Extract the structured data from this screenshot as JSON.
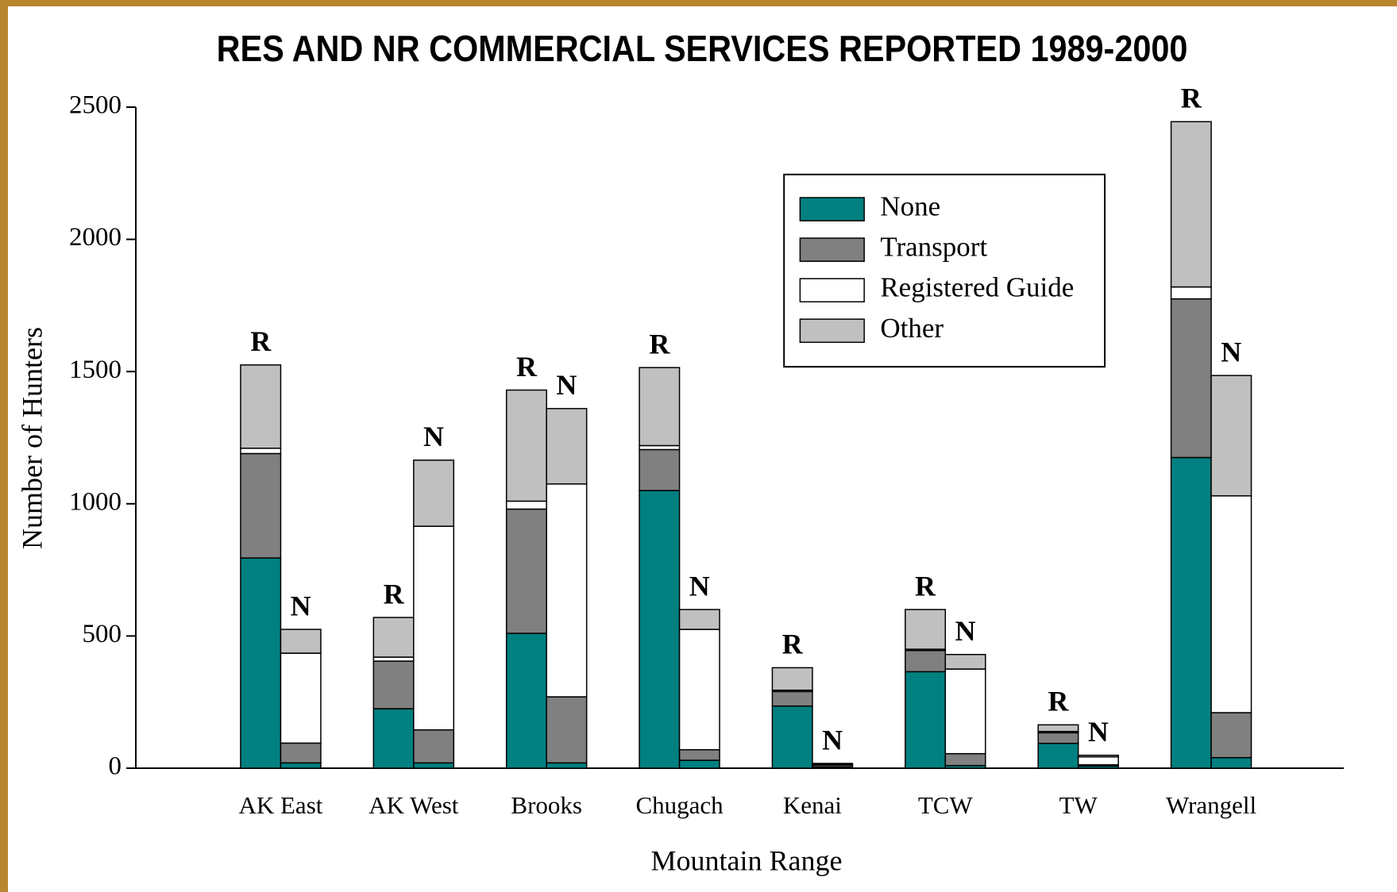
{
  "chart_data": {
    "type": "stacked-grouped-bar",
    "title": "RES AND NR COMMERCIAL SERVICES REPORTED 1989-2000",
    "x_label": "Mountain Range",
    "y_label": "Number of Hunters",
    "categories": [
      "AK East",
      "AK West",
      "Brooks",
      "Chugach",
      "Kenai",
      "TCW",
      "TW",
      "Wrangell"
    ],
    "stack_labels": [
      "R",
      "N"
    ],
    "series": [
      {
        "name": "None",
        "color": "#008080",
        "values": [
          [
            795,
            225,
            510,
            1050,
            235,
            365,
            94,
            1175
          ],
          [
            20,
            20,
            20,
            30,
            5,
            10,
            8,
            40
          ]
        ]
      },
      {
        "name": "Transport",
        "color": "#808080",
        "values": [
          [
            395,
            180,
            470,
            155,
            55,
            80,
            40,
            600
          ],
          [
            75,
            125,
            250,
            40,
            7,
            45,
            5,
            170
          ]
        ]
      },
      {
        "name": "Registered Guide",
        "color": "#ffffff",
        "values": [
          [
            20,
            15,
            30,
            15,
            5,
            5,
            5,
            45
          ],
          [
            340,
            770,
            805,
            455,
            3,
            320,
            30,
            820
          ]
        ]
      },
      {
        "name": "Other",
        "color": "#c0c0c0",
        "values": [
          [
            315,
            150,
            420,
            295,
            85,
            150,
            25,
            625
          ],
          [
            90,
            250,
            285,
            75,
            3,
            55,
            6,
            455
          ]
        ]
      }
    ],
    "ylim": [
      0,
      2500
    ],
    "yticks": [
      0,
      500,
      1000,
      1500,
      2000,
      2500
    ],
    "grid": false
  }
}
